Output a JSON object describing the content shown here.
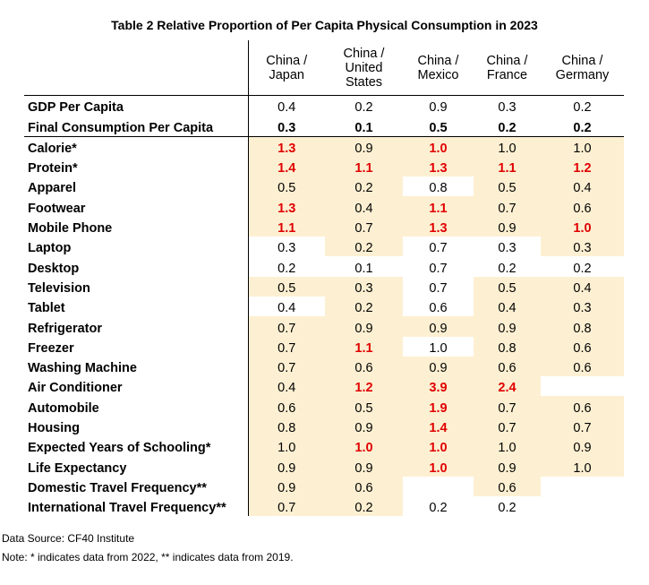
{
  "title": "Table 2 Relative Proportion of Per Capita Physical Consumption in 2023",
  "columns": [
    {
      "line1": "China /",
      "line2": "Japan",
      "line3": ""
    },
    {
      "line1": "China /",
      "line2": "United",
      "line3": "States"
    },
    {
      "line1": "China /",
      "line2": "Mexico",
      "line3": ""
    },
    {
      "line1": "China /",
      "line2": "France",
      "line3": ""
    },
    {
      "line1": "China /",
      "line2": "Germany",
      "line3": ""
    }
  ],
  "rows": [
    {
      "label": "GDP Per Capita",
      "cells": [
        {
          "v": "0.4",
          "hl": false,
          "red": false
        },
        {
          "v": "0.2",
          "hl": false,
          "red": false
        },
        {
          "v": "0.9",
          "hl": false,
          "red": false
        },
        {
          "v": "0.3",
          "hl": false,
          "red": false
        },
        {
          "v": "0.2",
          "hl": false,
          "red": false
        }
      ]
    },
    {
      "label": "Final Consumption Per Capita",
      "cells": [
        {
          "v": "0.3",
          "hl": false,
          "red": false
        },
        {
          "v": "0.1",
          "hl": false,
          "red": false
        },
        {
          "v": "0.5",
          "hl": false,
          "red": false
        },
        {
          "v": "0.2",
          "hl": false,
          "red": false
        },
        {
          "v": "0.2",
          "hl": false,
          "red": false
        }
      ]
    },
    {
      "label": "Calorie*",
      "cells": [
        {
          "v": "1.3",
          "hl": true,
          "red": true
        },
        {
          "v": "0.9",
          "hl": true,
          "red": false
        },
        {
          "v": "1.0",
          "hl": true,
          "red": true
        },
        {
          "v": "1.0",
          "hl": true,
          "red": false
        },
        {
          "v": "1.0",
          "hl": true,
          "red": false
        }
      ]
    },
    {
      "label": "Protein*",
      "cells": [
        {
          "v": "1.4",
          "hl": true,
          "red": true
        },
        {
          "v": "1.1",
          "hl": true,
          "red": true
        },
        {
          "v": "1.3",
          "hl": true,
          "red": true
        },
        {
          "v": "1.1",
          "hl": true,
          "red": true
        },
        {
          "v": "1.2",
          "hl": true,
          "red": true
        }
      ]
    },
    {
      "label": "Apparel",
      "cells": [
        {
          "v": "0.5",
          "hl": true,
          "red": false
        },
        {
          "v": "0.2",
          "hl": true,
          "red": false
        },
        {
          "v": "0.8",
          "hl": false,
          "red": false
        },
        {
          "v": "0.5",
          "hl": true,
          "red": false
        },
        {
          "v": "0.4",
          "hl": true,
          "red": false
        }
      ]
    },
    {
      "label": "Footwear",
      "cells": [
        {
          "v": "1.3",
          "hl": true,
          "red": true
        },
        {
          "v": "0.4",
          "hl": true,
          "red": false
        },
        {
          "v": "1.1",
          "hl": true,
          "red": true
        },
        {
          "v": "0.7",
          "hl": true,
          "red": false
        },
        {
          "v": "0.6",
          "hl": true,
          "red": false
        }
      ]
    },
    {
      "label": "Mobile Phone",
      "cells": [
        {
          "v": "1.1",
          "hl": true,
          "red": true
        },
        {
          "v": "0.7",
          "hl": true,
          "red": false
        },
        {
          "v": "1.3",
          "hl": true,
          "red": true
        },
        {
          "v": "0.9",
          "hl": true,
          "red": false
        },
        {
          "v": "1.0",
          "hl": true,
          "red": true
        }
      ]
    },
    {
      "label": "Laptop",
      "cells": [
        {
          "v": "0.3",
          "hl": false,
          "red": false
        },
        {
          "v": "0.2",
          "hl": true,
          "red": false
        },
        {
          "v": "0.7",
          "hl": false,
          "red": false
        },
        {
          "v": "0.3",
          "hl": false,
          "red": false
        },
        {
          "v": "0.3",
          "hl": true,
          "red": false
        }
      ]
    },
    {
      "label": "Desktop",
      "cells": [
        {
          "v": "0.2",
          "hl": false,
          "red": false
        },
        {
          "v": "0.1",
          "hl": false,
          "red": false
        },
        {
          "v": "0.7",
          "hl": false,
          "red": false
        },
        {
          "v": "0.2",
          "hl": false,
          "red": false
        },
        {
          "v": "0.2",
          "hl": false,
          "red": false
        }
      ]
    },
    {
      "label": "Television",
      "cells": [
        {
          "v": "0.5",
          "hl": true,
          "red": false
        },
        {
          "v": "0.3",
          "hl": true,
          "red": false
        },
        {
          "v": "0.7",
          "hl": false,
          "red": false
        },
        {
          "v": "0.5",
          "hl": true,
          "red": false
        },
        {
          "v": "0.4",
          "hl": true,
          "red": false
        }
      ]
    },
    {
      "label": "Tablet",
      "cells": [
        {
          "v": "0.4",
          "hl": false,
          "red": false
        },
        {
          "v": "0.2",
          "hl": true,
          "red": false
        },
        {
          "v": "0.6",
          "hl": false,
          "red": false
        },
        {
          "v": "0.4",
          "hl": true,
          "red": false
        },
        {
          "v": "0.3",
          "hl": true,
          "red": false
        }
      ]
    },
    {
      "label": "Refrigerator",
      "cells": [
        {
          "v": "0.7",
          "hl": true,
          "red": false
        },
        {
          "v": "0.9",
          "hl": true,
          "red": false
        },
        {
          "v": "0.9",
          "hl": true,
          "red": false
        },
        {
          "v": "0.9",
          "hl": true,
          "red": false
        },
        {
          "v": "0.8",
          "hl": true,
          "red": false
        }
      ]
    },
    {
      "label": "Freezer",
      "cells": [
        {
          "v": "0.7",
          "hl": true,
          "red": false
        },
        {
          "v": "1.1",
          "hl": true,
          "red": true
        },
        {
          "v": "1.0",
          "hl": false,
          "red": false
        },
        {
          "v": "0.8",
          "hl": true,
          "red": false
        },
        {
          "v": "0.6",
          "hl": true,
          "red": false
        }
      ]
    },
    {
      "label": "Washing Machine",
      "cells": [
        {
          "v": "0.7",
          "hl": true,
          "red": false
        },
        {
          "v": "0.6",
          "hl": true,
          "red": false
        },
        {
          "v": "0.9",
          "hl": true,
          "red": false
        },
        {
          "v": "0.6",
          "hl": true,
          "red": false
        },
        {
          "v": "0.6",
          "hl": true,
          "red": false
        }
      ]
    },
    {
      "label": "Air Conditioner",
      "cells": [
        {
          "v": "0.4",
          "hl": true,
          "red": false
        },
        {
          "v": "1.2",
          "hl": true,
          "red": true
        },
        {
          "v": "3.9",
          "hl": true,
          "red": true
        },
        {
          "v": "2.4",
          "hl": true,
          "red": true
        },
        {
          "v": "",
          "hl": false,
          "red": false
        }
      ]
    },
    {
      "label": "Automobile",
      "cells": [
        {
          "v": "0.6",
          "hl": true,
          "red": false
        },
        {
          "v": "0.5",
          "hl": true,
          "red": false
        },
        {
          "v": "1.9",
          "hl": true,
          "red": true
        },
        {
          "v": "0.7",
          "hl": true,
          "red": false
        },
        {
          "v": "0.6",
          "hl": true,
          "red": false
        }
      ]
    },
    {
      "label": "Housing",
      "cells": [
        {
          "v": "0.8",
          "hl": true,
          "red": false
        },
        {
          "v": "0.9",
          "hl": true,
          "red": false
        },
        {
          "v": "1.4",
          "hl": true,
          "red": true
        },
        {
          "v": "0.7",
          "hl": true,
          "red": false
        },
        {
          "v": "0.7",
          "hl": true,
          "red": false
        }
      ]
    },
    {
      "label": "Expected Years of Schooling*",
      "cells": [
        {
          "v": "1.0",
          "hl": true,
          "red": false
        },
        {
          "v": "1.0",
          "hl": true,
          "red": true
        },
        {
          "v": "1.0",
          "hl": true,
          "red": true
        },
        {
          "v": "1.0",
          "hl": true,
          "red": false
        },
        {
          "v": "0.9",
          "hl": true,
          "red": false
        }
      ]
    },
    {
      "label": "Life Expectancy",
      "cells": [
        {
          "v": "0.9",
          "hl": true,
          "red": false
        },
        {
          "v": "0.9",
          "hl": true,
          "red": false
        },
        {
          "v": "1.0",
          "hl": true,
          "red": true
        },
        {
          "v": "0.9",
          "hl": true,
          "red": false
        },
        {
          "v": "1.0",
          "hl": true,
          "red": false
        }
      ]
    },
    {
      "label": "Domestic Travel Frequency**",
      "cells": [
        {
          "v": "0.9",
          "hl": true,
          "red": false
        },
        {
          "v": "0.6",
          "hl": true,
          "red": false
        },
        {
          "v": "",
          "hl": false,
          "red": false
        },
        {
          "v": "0.6",
          "hl": true,
          "red": false
        },
        {
          "v": "",
          "hl": false,
          "red": false
        }
      ]
    },
    {
      "label": "International Travel Frequency**",
      "cells": [
        {
          "v": "0.7",
          "hl": true,
          "red": false
        },
        {
          "v": "0.2",
          "hl": true,
          "red": false
        },
        {
          "v": "0.2",
          "hl": false,
          "red": false
        },
        {
          "v": "0.2",
          "hl": false,
          "red": false
        },
        {
          "v": "",
          "hl": false,
          "red": false
        }
      ]
    }
  ],
  "source": "Data Source: CF40 Institute",
  "note": "Note: * indicates data from 2022, ** indicates data from 2019."
}
